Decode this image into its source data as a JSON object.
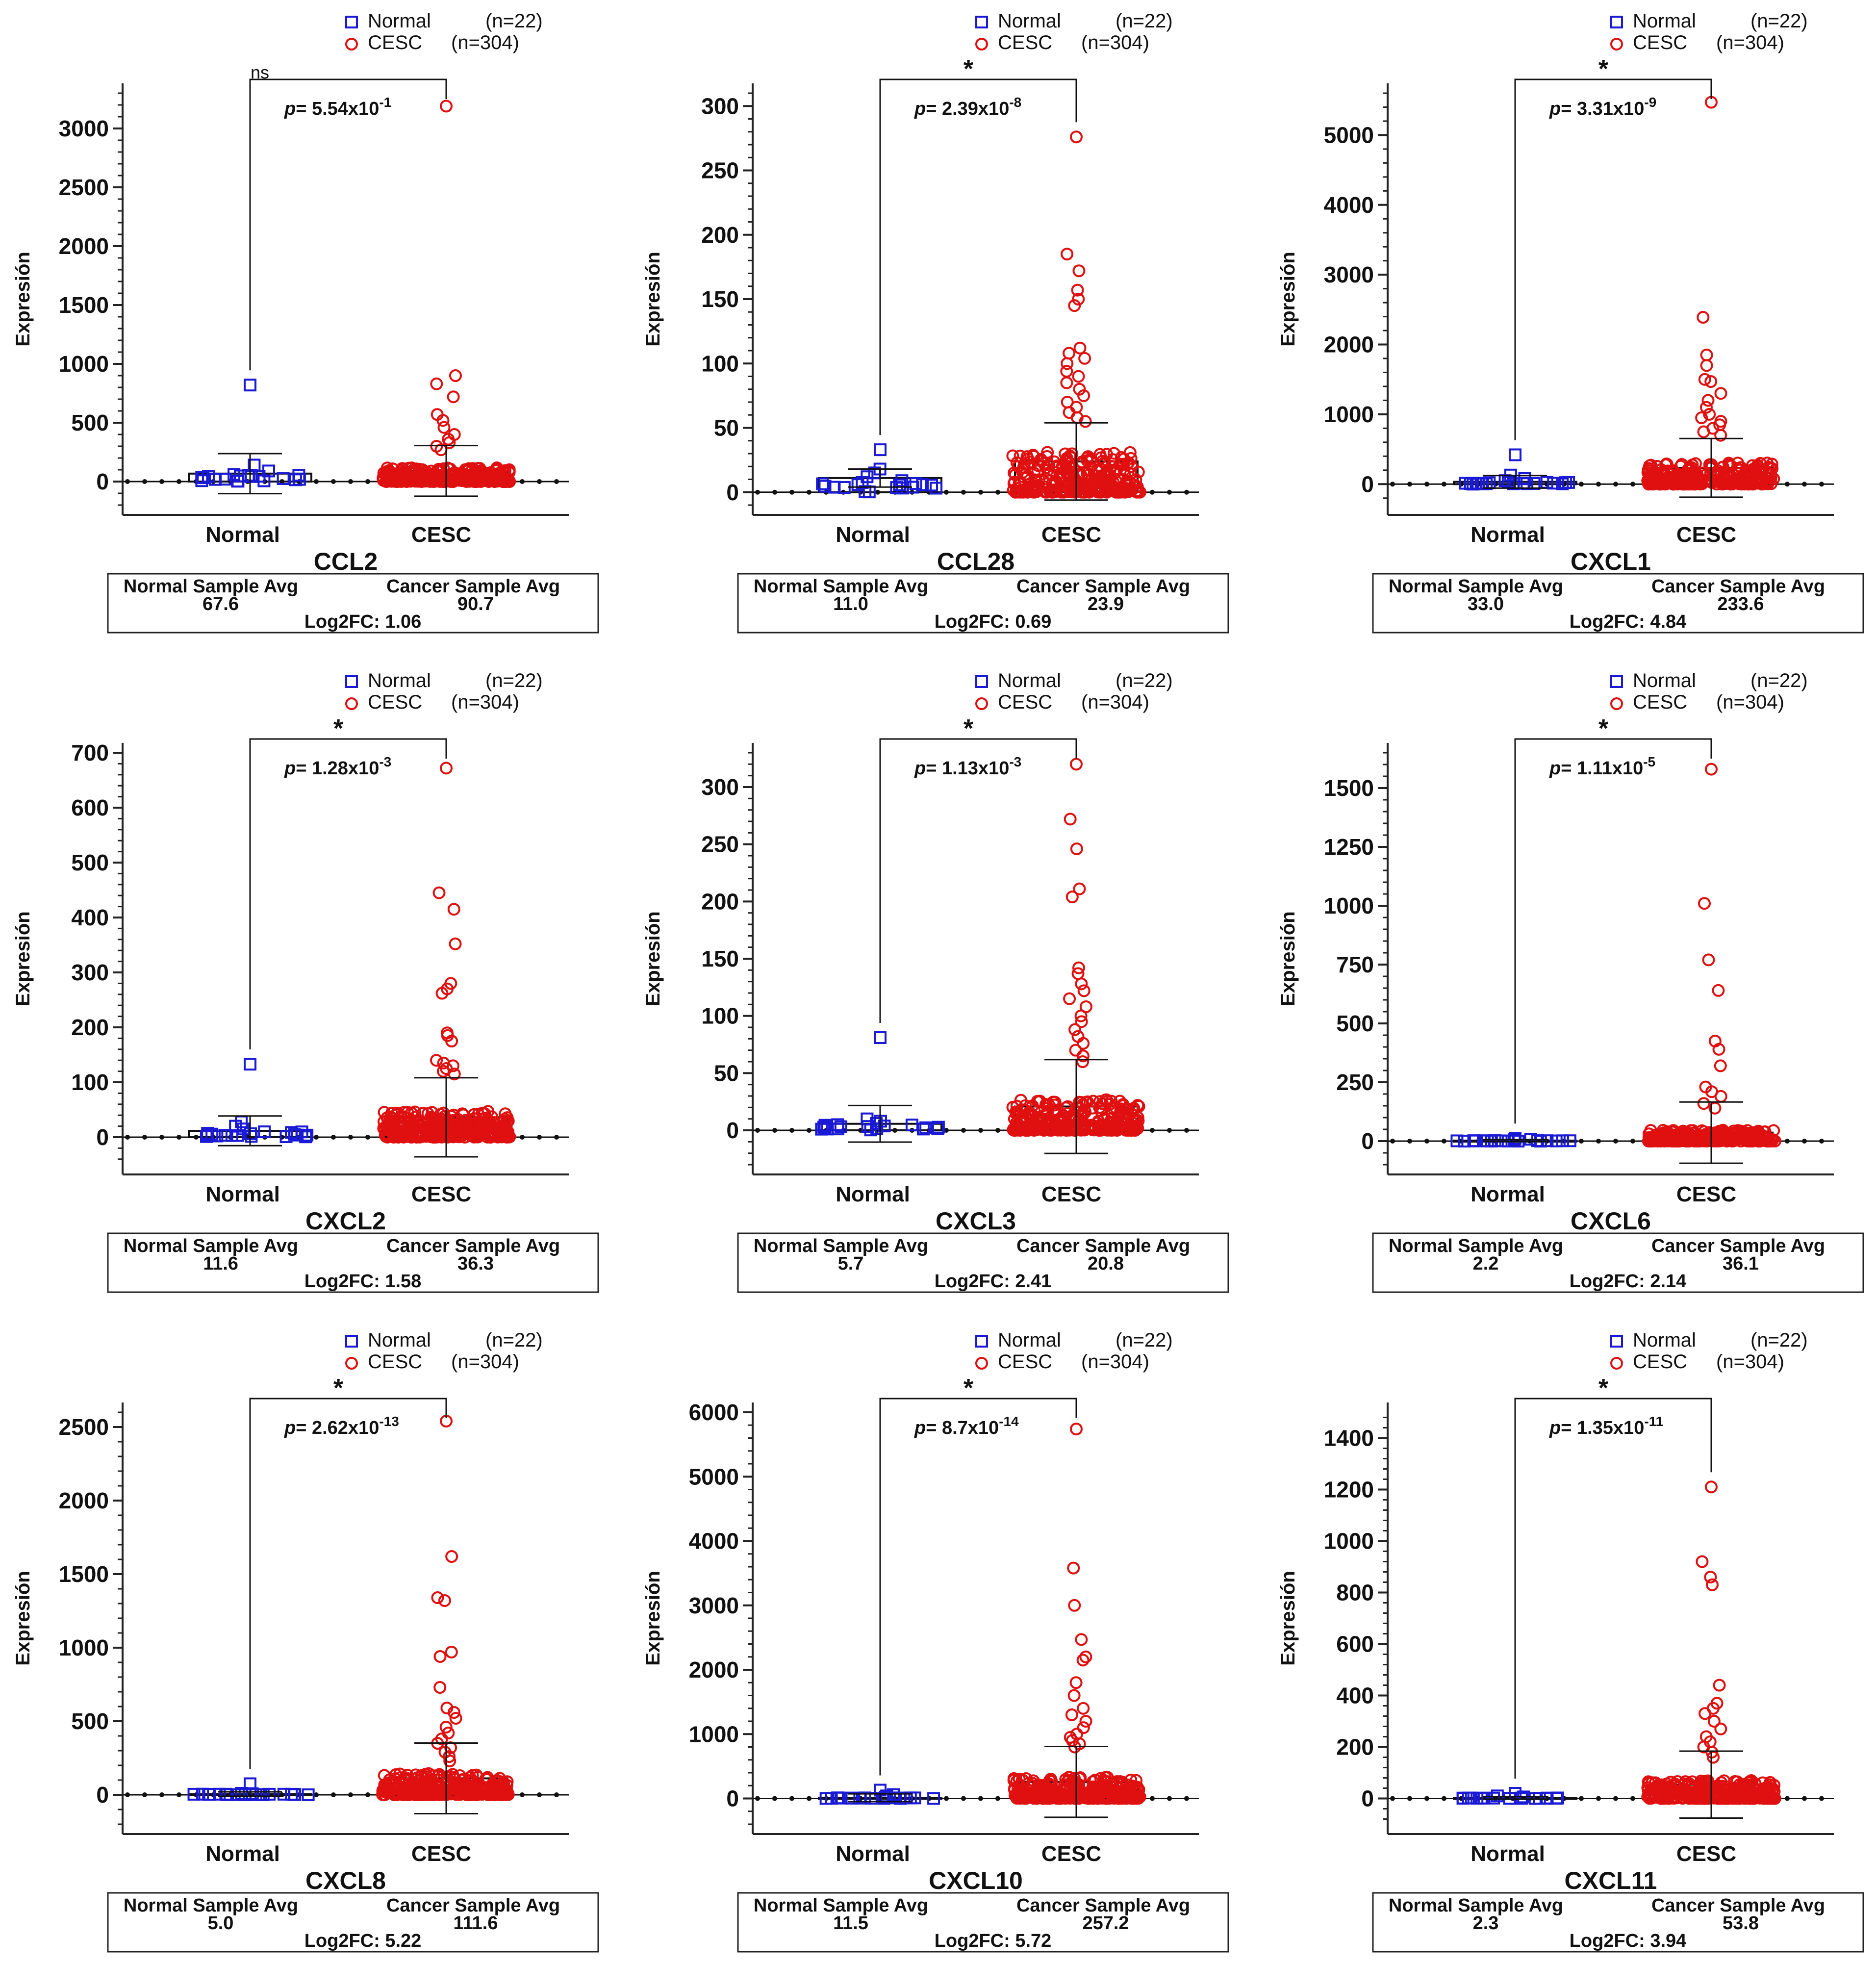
{
  "figure": {
    "y_axis_label": "Expresión",
    "category_labels": [
      "Normal",
      "CESC"
    ],
    "legend": {
      "normal_name": "Normal",
      "normal_n": "(n=22)",
      "cancer_name": "CESC",
      "cancer_n": "(n=304)"
    },
    "summary_labels": {
      "normal": "Normal Sample Avg",
      "cancer": "Cancer Sample Avg",
      "log2fc_prefix": "Log2FC: "
    },
    "p_prefix": "p=",
    "colors": {
      "normal": "#1a1ad6",
      "cancer": "#e01010",
      "axis": "#222222"
    }
  },
  "chart_data": [
    {
      "type": "scatter",
      "gene": "CCL2",
      "sig": "ns",
      "p_mantissa": "5.54",
      "p_exp": "-1",
      "yticks": [
        0,
        500,
        1000,
        1500,
        2000,
        2500,
        3000
      ],
      "ylim": [
        -200,
        3300
      ],
      "normal": {
        "mean": 67.6,
        "sd": 170,
        "outliers": [
          820,
          140,
          90,
          60
        ]
      },
      "cancer": {
        "mean": 90.7,
        "sd": 215,
        "outliers": [
          3190,
          900,
          830,
          720,
          570,
          520,
          460,
          400,
          360,
          330,
          300,
          270
        ]
      },
      "normal_avg": "67.6",
      "cancer_avg": "90.7",
      "log2fc": "1.06"
    },
    {
      "type": "scatter",
      "gene": "CCL28",
      "sig": "*",
      "p_mantissa": "2.39",
      "p_exp": "-8",
      "yticks": [
        0,
        50,
        100,
        150,
        200,
        250,
        300
      ],
      "ylim": [
        -10,
        310
      ],
      "normal": {
        "mean": 11.0,
        "sd": 7,
        "outliers": [
          33,
          18,
          15,
          12
        ]
      },
      "cancer": {
        "mean": 23.9,
        "sd": 30,
        "outliers": [
          276,
          185,
          172,
          157,
          150,
          145,
          112,
          108,
          104,
          100,
          94,
          90,
          85,
          80,
          75,
          70,
          66,
          62,
          58,
          55
        ]
      },
      "normal_avg": "11.0",
      "cancer_avg": "23.9",
      "log2fc": "0.69"
    },
    {
      "type": "scatter",
      "gene": "CXCL1",
      "sig": "*",
      "p_mantissa": "3.31",
      "p_exp": "-9",
      "yticks": [
        0,
        1000,
        2000,
        3000,
        4000,
        5000
      ],
      "ylim": [
        -300,
        5600
      ],
      "normal": {
        "mean": 33.0,
        "sd": 90,
        "outliers": [
          420,
          130,
          80,
          50
        ]
      },
      "cancer": {
        "mean": 233.6,
        "sd": 420,
        "outliers": [
          5470,
          2390,
          1850,
          1700,
          1500,
          1470,
          1300,
          1200,
          1100,
          1000,
          950,
          900,
          850,
          800,
          750,
          700
        ]
      },
      "normal_avg": "33.0",
      "cancer_avg": "233.6",
      "log2fc": "4.84"
    },
    {
      "type": "scatter",
      "gene": "CXCL2",
      "sig": "*",
      "p_mantissa": "1.28",
      "p_exp": "-3",
      "yticks": [
        0,
        100,
        200,
        300,
        400,
        500,
        600,
        700
      ],
      "ylim": [
        -50,
        700
      ],
      "normal": {
        "mean": 11.6,
        "sd": 27,
        "outliers": [
          133,
          28,
          20,
          15
        ]
      },
      "cancer": {
        "mean": 36.3,
        "sd": 72,
        "outliers": [
          672,
          445,
          415,
          352,
          280,
          270,
          262,
          190,
          185,
          175,
          140,
          135,
          130,
          125,
          120,
          115
        ]
      },
      "normal_avg": "11.6",
      "cancer_avg": "36.3",
      "log2fc": "1.58"
    },
    {
      "type": "scatter",
      "gene": "CXCL3",
      "sig": "*",
      "p_mantissa": "1.13",
      "p_exp": "-3",
      "yticks": [
        0,
        50,
        100,
        150,
        200,
        250,
        300
      ],
      "ylim": [
        -30,
        330
      ],
      "normal": {
        "mean": 5.7,
        "sd": 16,
        "outliers": [
          81,
          10,
          8,
          6
        ]
      },
      "cancer": {
        "mean": 20.8,
        "sd": 41,
        "outliers": [
          320,
          272,
          246,
          211,
          204,
          142,
          137,
          128,
          122,
          115,
          108,
          100,
          95,
          88,
          82,
          76,
          70,
          65,
          60
        ]
      },
      "normal_avg": "5.7",
      "cancer_avg": "20.8",
      "log2fc": "2.41"
    },
    {
      "type": "scatter",
      "gene": "CXCL6",
      "sig": "*",
      "p_mantissa": "1.11",
      "p_exp": "-5",
      "yticks": [
        0,
        250,
        500,
        750,
        1000,
        1250,
        1500
      ],
      "ylim": [
        -100,
        1650
      ],
      "normal": {
        "mean": 2.2,
        "sd": 4,
        "outliers": [
          12,
          8,
          6
        ]
      },
      "cancer": {
        "mean": 36.1,
        "sd": 130,
        "outliers": [
          1580,
          1010,
          770,
          640,
          425,
          390,
          320,
          230,
          210,
          190,
          160,
          140
        ]
      },
      "normal_avg": "2.2",
      "cancer_avg": "36.1",
      "log2fc": "2.14"
    },
    {
      "type": "scatter",
      "gene": "CXCL8",
      "sig": "*",
      "p_mantissa": "2.62",
      "p_exp": "-13",
      "yticks": [
        0,
        500,
        1000,
        1500,
        2000,
        2500
      ],
      "ylim": [
        -200,
        2600
      ],
      "normal": {
        "mean": 5.0,
        "sd": 15,
        "outliers": [
          75,
          10,
          8
        ]
      },
      "cancer": {
        "mean": 111.6,
        "sd": 240,
        "outliers": [
          2540,
          1620,
          1340,
          1320,
          970,
          940,
          730,
          590,
          560,
          520,
          460,
          420,
          380,
          350,
          320,
          290,
          260,
          230
        ]
      },
      "normal_avg": "5.0",
      "cancer_avg": "111.6",
      "log2fc": "5.22"
    },
    {
      "type": "scatter",
      "gene": "CXCL10",
      "sig": "*",
      "p_mantissa": "8.7",
      "p_exp": "-14",
      "yticks": [
        0,
        1000,
        2000,
        3000,
        4000,
        5000,
        6000
      ],
      "ylim": [
        -400,
        6000
      ],
      "normal": {
        "mean": 11.5,
        "sd": 60,
        "outliers": [
          130,
          60,
          40,
          20
        ]
      },
      "cancer": {
        "mean": 257.2,
        "sd": 550,
        "outliers": [
          5740,
          3580,
          3000,
          2470,
          2200,
          2150,
          1800,
          1600,
          1400,
          1300,
          1200,
          1100,
          1000,
          950,
          900,
          850,
          800
        ]
      },
      "normal_avg": "11.5",
      "cancer_avg": "257.2",
      "log2fc": "5.72"
    },
    {
      "type": "scatter",
      "gene": "CXCL11",
      "sig": "*",
      "p_mantissa": "1.35",
      "p_exp": "-11",
      "yticks": [
        0,
        200,
        400,
        600,
        800,
        1000,
        1200,
        1400
      ],
      "ylim": [
        -100,
        1500
      ],
      "normal": {
        "mean": 2.3,
        "sd": 5,
        "outliers": [
          20,
          10,
          6
        ]
      },
      "cancer": {
        "mean": 53.8,
        "sd": 130,
        "outliers": [
          1210,
          920,
          860,
          830,
          440,
          370,
          350,
          330,
          300,
          270,
          240,
          220,
          200,
          180,
          160
        ]
      },
      "normal_avg": "2.3",
      "cancer_avg": "53.8",
      "log2fc": "3.94"
    }
  ]
}
